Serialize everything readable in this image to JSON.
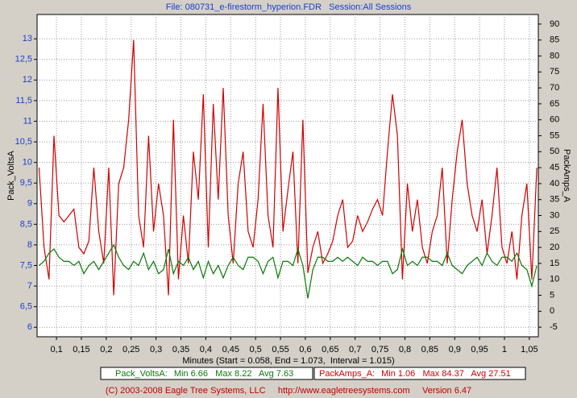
{
  "chart_data": {
    "type": "line",
    "title": "File: 080731_e-firestorm_hyperion.FDR   Session:All Sessions",
    "x_label": "Minutes (Start = 0.058, End = 1.073,  Interval = 1.015)",
    "y_label": "Pack_VoltsA",
    "y2_label": "PackAmps_A",
    "footer": "(C) 2003-2008 Eagle Tree Systems, LLC     http://www.eagletreesystems.com     Version 6.47",
    "grid": true,
    "xlim": [
      0.061,
      1.068
    ],
    "ylim": [
      5.77,
      13.59
    ],
    "y2lim": [
      -8,
      93
    ],
    "xticks": [
      {
        "value": 0.1,
        "label": "0,1"
      },
      {
        "value": 0.15,
        "label": "0,15"
      },
      {
        "value": 0.2,
        "label": "0,2"
      },
      {
        "value": 0.25,
        "label": "0,25"
      },
      {
        "value": 0.3,
        "label": "0,3"
      },
      {
        "value": 0.35,
        "label": "0,35"
      },
      {
        "value": 0.4,
        "label": "0,4"
      },
      {
        "value": 0.45,
        "label": "0,45"
      },
      {
        "value": 0.5,
        "label": "0,5"
      },
      {
        "value": 0.55,
        "label": "0,55"
      },
      {
        "value": 0.6,
        "label": "0,6"
      },
      {
        "value": 0.65,
        "label": "0,65"
      },
      {
        "value": 0.7,
        "label": "0,7"
      },
      {
        "value": 0.75,
        "label": "0,75"
      },
      {
        "value": 0.8,
        "label": "0,8"
      },
      {
        "value": 0.85,
        "label": "0,85"
      },
      {
        "value": 0.9,
        "label": "0,9"
      },
      {
        "value": 0.95,
        "label": "0,95"
      },
      1,
      {
        "value": 1.05,
        "label": "1,05"
      }
    ],
    "yticks": [
      6,
      {
        "value": 6.5,
        "label": "6,5"
      },
      7,
      {
        "value": 7.5,
        "label": "7,5"
      },
      8,
      {
        "value": 8.5,
        "label": "8,5"
      },
      9,
      {
        "value": 9.5,
        "label": "9,5"
      },
      10,
      {
        "value": 10.5,
        "label": "10,5"
      },
      11,
      {
        "value": 11.5,
        "label": "11,5"
      },
      12,
      {
        "value": 12.5,
        "label": "12,5"
      },
      13
    ],
    "y2ticks": [
      -5,
      0,
      5,
      10,
      15,
      20,
      25,
      30,
      35,
      40,
      45,
      50,
      55,
      60,
      65,
      70,
      75,
      80,
      85,
      90
    ],
    "x": [
      0.065,
      0.075,
      0.085,
      0.095,
      0.105,
      0.115,
      0.125,
      0.135,
      0.145,
      0.155,
      0.165,
      0.175,
      0.185,
      0.195,
      0.205,
      0.215,
      0.225,
      0.235,
      0.245,
      0.255,
      0.265,
      0.275,
      0.285,
      0.295,
      0.305,
      0.315,
      0.325,
      0.335,
      0.345,
      0.355,
      0.365,
      0.375,
      0.385,
      0.395,
      0.405,
      0.415,
      0.425,
      0.435,
      0.445,
      0.455,
      0.465,
      0.475,
      0.485,
      0.495,
      0.505,
      0.515,
      0.525,
      0.535,
      0.545,
      0.555,
      0.565,
      0.575,
      0.585,
      0.595,
      0.605,
      0.615,
      0.625,
      0.635,
      0.645,
      0.655,
      0.665,
      0.675,
      0.685,
      0.695,
      0.705,
      0.715,
      0.725,
      0.735,
      0.745,
      0.755,
      0.765,
      0.775,
      0.785,
      0.795,
      0.805,
      0.815,
      0.825,
      0.835,
      0.845,
      0.855,
      0.865,
      0.875,
      0.885,
      0.895,
      0.905,
      0.915,
      0.925,
      0.935,
      0.945,
      0.955,
      0.965,
      0.975,
      0.985,
      0.995,
      1.005,
      1.015,
      1.025,
      1.035,
      1.045,
      1.055,
      1.065
    ],
    "series": [
      {
        "name": "Pack_VoltsA:",
        "stats": "Min 6.66   Max 8.22   Avg 7.63",
        "color": "#0a7a0a",
        "axis": "y",
        "values": [
          7.5,
          7.6,
          7.8,
          7.9,
          7.7,
          7.6,
          7.6,
          7.5,
          7.6,
          7.3,
          7.5,
          7.6,
          7.4,
          7.6,
          7.8,
          8.0,
          7.7,
          7.5,
          7.4,
          7.6,
          7.5,
          7.8,
          7.4,
          7.6,
          7.3,
          7.4,
          7.9,
          7.3,
          7.6,
          7.5,
          7.7,
          7.4,
          7.6,
          7.2,
          7.6,
          7.3,
          7.5,
          7.2,
          7.5,
          7.7,
          7.5,
          7.4,
          7.7,
          7.7,
          7.6,
          7.3,
          7.6,
          7.7,
          7.2,
          7.6,
          7.6,
          7.5,
          7.9,
          7.5,
          6.7,
          7.4,
          7.7,
          7.7,
          7.6,
          7.6,
          7.7,
          7.6,
          7.7,
          7.6,
          7.5,
          7.7,
          7.6,
          7.6,
          7.5,
          7.6,
          7.6,
          7.3,
          7.4,
          7.9,
          7.5,
          7.6,
          7.5,
          7.7,
          7.7,
          7.6,
          7.6,
          7.5,
          7.8,
          7.5,
          7.4,
          7.3,
          7.5,
          7.6,
          7.7,
          7.5,
          7.8,
          7.6,
          7.5,
          7.7,
          7.7,
          7.6,
          7.8,
          7.5,
          7.4,
          7.0,
          7.5
        ]
      },
      {
        "name": "PackAmps_A:",
        "stats": "Min 1.06   Max 84.37   Avg 27.51",
        "color": "#d00000",
        "axis": "y2",
        "values": [
          45,
          20,
          10,
          55,
          30,
          28,
          30,
          32,
          20,
          18,
          22,
          45,
          25,
          15,
          45,
          5,
          40,
          45,
          60,
          85,
          30,
          20,
          55,
          25,
          40,
          30,
          5,
          60,
          10,
          30,
          15,
          50,
          35,
          68,
          20,
          65,
          35,
          70,
          30,
          15,
          40,
          50,
          25,
          20,
          35,
          65,
          30,
          20,
          70,
          25,
          38,
          50,
          15,
          60,
          12,
          20,
          25,
          15,
          18,
          22,
          30,
          35,
          20,
          22,
          30,
          25,
          28,
          32,
          35,
          30,
          50,
          68,
          55,
          10,
          40,
          25,
          35,
          20,
          15,
          25,
          30,
          45,
          15,
          35,
          50,
          60,
          40,
          30,
          25,
          35,
          18,
          30,
          45,
          20,
          15,
          25,
          10,
          30,
          40,
          10,
          45
        ]
      }
    ]
  }
}
